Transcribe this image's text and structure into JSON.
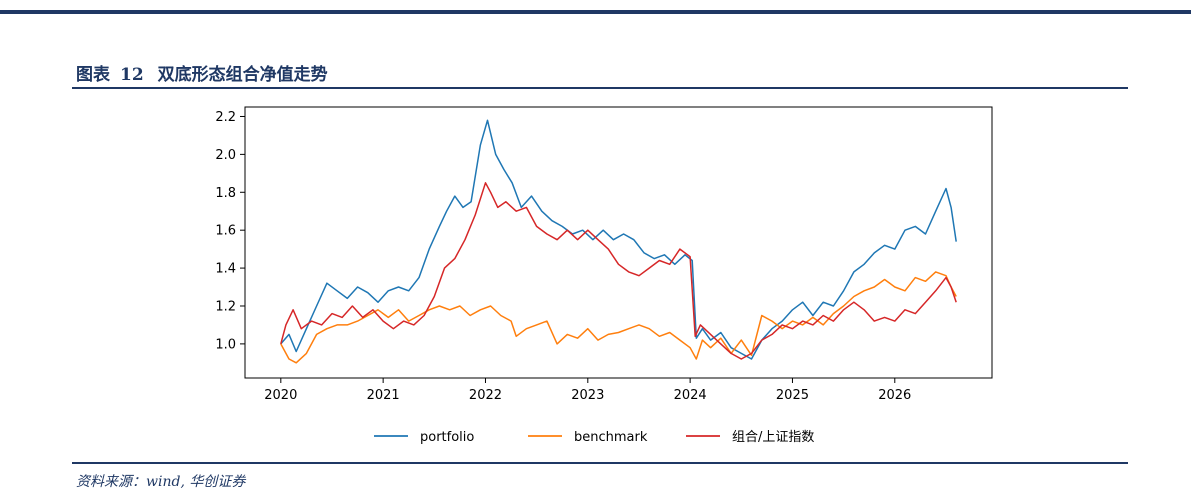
{
  "figure": {
    "label": "图表",
    "number": "12",
    "title": "双底形态组合净值走势"
  },
  "source": "资料来源：wind, 华创证券",
  "chart_data": {
    "type": "line",
    "title": "",
    "xlabel": "",
    "ylabel": "",
    "xlim": [
      2019.65,
      2026.95
    ],
    "ylim": [
      0.82,
      2.25
    ],
    "x_ticks": [
      "2020",
      "2021",
      "2022",
      "2023",
      "2024",
      "2025",
      "2026"
    ],
    "y_ticks": [
      "1.0",
      "1.2",
      "1.4",
      "1.6",
      "1.8",
      "2.0",
      "2.2"
    ],
    "grid": false,
    "legend": "bottom-center",
    "series": [
      {
        "name": "portfolio",
        "color": "#1f77b4",
        "x": [
          2020.0,
          2020.08,
          2020.15,
          2020.25,
          2020.35,
          2020.45,
          2020.55,
          2020.65,
          2020.75,
          2020.85,
          2020.95,
          2021.05,
          2021.15,
          2021.25,
          2021.35,
          2021.45,
          2021.55,
          2021.62,
          2021.7,
          2021.78,
          2021.86,
          2021.95,
          2022.02,
          2022.1,
          2022.18,
          2022.26,
          2022.35,
          2022.45,
          2022.55,
          2022.65,
          2022.75,
          2022.85,
          2022.95,
          2023.05,
          2023.15,
          2023.25,
          2023.35,
          2023.45,
          2023.55,
          2023.65,
          2023.75,
          2023.85,
          2023.95,
          2024.02,
          2024.06,
          2024.12,
          2024.2,
          2024.3,
          2024.4,
          2024.5,
          2024.6,
          2024.7,
          2024.8,
          2024.9,
          2025.0,
          2025.1,
          2025.2,
          2025.3,
          2025.4,
          2025.5,
          2025.6,
          2025.7,
          2025.8,
          2025.9,
          2026.0,
          2026.1,
          2026.2,
          2026.3,
          2026.4,
          2026.5,
          2026.55,
          2026.6
        ],
        "y": [
          1.0,
          1.05,
          0.96,
          1.08,
          1.2,
          1.32,
          1.28,
          1.24,
          1.3,
          1.27,
          1.22,
          1.28,
          1.3,
          1.28,
          1.35,
          1.5,
          1.62,
          1.7,
          1.78,
          1.72,
          1.75,
          2.05,
          2.18,
          2.0,
          1.92,
          1.85,
          1.72,
          1.78,
          1.7,
          1.65,
          1.62,
          1.58,
          1.6,
          1.55,
          1.6,
          1.55,
          1.58,
          1.55,
          1.48,
          1.45,
          1.47,
          1.42,
          1.47,
          1.44,
          1.03,
          1.08,
          1.02,
          1.06,
          0.98,
          0.95,
          0.92,
          1.02,
          1.08,
          1.12,
          1.18,
          1.22,
          1.15,
          1.22,
          1.2,
          1.28,
          1.38,
          1.42,
          1.48,
          1.52,
          1.5,
          1.6,
          1.62,
          1.58,
          1.7,
          1.82,
          1.72,
          1.54
        ]
      },
      {
        "name": "benchmark",
        "color": "#ff7f0e",
        "x": [
          2020.0,
          2020.08,
          2020.15,
          2020.25,
          2020.35,
          2020.45,
          2020.55,
          2020.65,
          2020.75,
          2020.85,
          2020.95,
          2021.05,
          2021.15,
          2021.25,
          2021.35,
          2021.45,
          2021.55,
          2021.65,
          2021.75,
          2021.85,
          2021.95,
          2022.05,
          2022.15,
          2022.25,
          2022.3,
          2022.4,
          2022.5,
          2022.6,
          2022.7,
          2022.8,
          2022.9,
          2023.0,
          2023.1,
          2023.2,
          2023.3,
          2023.4,
          2023.5,
          2023.6,
          2023.7,
          2023.8,
          2023.9,
          2024.0,
          2024.06,
          2024.12,
          2024.2,
          2024.3,
          2024.4,
          2024.5,
          2024.6,
          2024.7,
          2024.8,
          2024.9,
          2025.0,
          2025.1,
          2025.2,
          2025.3,
          2025.4,
          2025.5,
          2025.6,
          2025.7,
          2025.8,
          2025.9,
          2026.0,
          2026.1,
          2026.2,
          2026.3,
          2026.4,
          2026.5,
          2026.55,
          2026.6
        ],
        "y": [
          1.0,
          0.92,
          0.9,
          0.95,
          1.05,
          1.08,
          1.1,
          1.1,
          1.12,
          1.15,
          1.18,
          1.14,
          1.18,
          1.12,
          1.15,
          1.18,
          1.2,
          1.18,
          1.2,
          1.15,
          1.18,
          1.2,
          1.15,
          1.12,
          1.04,
          1.08,
          1.1,
          1.12,
          1.0,
          1.05,
          1.03,
          1.08,
          1.02,
          1.05,
          1.06,
          1.08,
          1.1,
          1.08,
          1.04,
          1.06,
          1.02,
          0.98,
          0.92,
          1.02,
          0.98,
          1.03,
          0.95,
          1.02,
          0.94,
          1.15,
          1.12,
          1.08,
          1.12,
          1.1,
          1.14,
          1.1,
          1.16,
          1.2,
          1.25,
          1.28,
          1.3,
          1.34,
          1.3,
          1.28,
          1.35,
          1.33,
          1.38,
          1.36,
          1.3,
          1.25
        ]
      },
      {
        "name": "组合/上证指数",
        "color": "#d62728",
        "x": [
          2020.0,
          2020.05,
          2020.12,
          2020.2,
          2020.3,
          2020.4,
          2020.5,
          2020.6,
          2020.7,
          2020.8,
          2020.9,
          2021.0,
          2021.1,
          2021.2,
          2021.3,
          2021.4,
          2021.5,
          2021.6,
          2021.7,
          2021.8,
          2021.9,
          2022.0,
          2022.05,
          2022.12,
          2022.2,
          2022.3,
          2022.4,
          2022.5,
          2022.6,
          2022.7,
          2022.8,
          2022.9,
          2023.0,
          2023.1,
          2023.2,
          2023.3,
          2023.4,
          2023.5,
          2023.6,
          2023.7,
          2023.8,
          2023.9,
          2024.0,
          2024.05,
          2024.1,
          2024.2,
          2024.3,
          2024.4,
          2024.5,
          2024.6,
          2024.7,
          2024.8,
          2024.9,
          2025.0,
          2025.1,
          2025.2,
          2025.3,
          2025.4,
          2025.5,
          2025.6,
          2025.7,
          2025.8,
          2025.9,
          2026.0,
          2026.1,
          2026.2,
          2026.3,
          2026.4,
          2026.5,
          2026.55,
          2026.6
        ],
        "y": [
          1.0,
          1.1,
          1.18,
          1.08,
          1.12,
          1.1,
          1.16,
          1.14,
          1.2,
          1.14,
          1.18,
          1.12,
          1.08,
          1.12,
          1.1,
          1.15,
          1.25,
          1.4,
          1.45,
          1.55,
          1.68,
          1.85,
          1.8,
          1.72,
          1.75,
          1.7,
          1.72,
          1.62,
          1.58,
          1.55,
          1.6,
          1.55,
          1.6,
          1.55,
          1.5,
          1.42,
          1.38,
          1.36,
          1.4,
          1.44,
          1.42,
          1.5,
          1.46,
          1.04,
          1.1,
          1.05,
          1.0,
          0.95,
          0.92,
          0.95,
          1.02,
          1.05,
          1.1,
          1.08,
          1.12,
          1.1,
          1.15,
          1.12,
          1.18,
          1.22,
          1.18,
          1.12,
          1.14,
          1.12,
          1.18,
          1.16,
          1.22,
          1.28,
          1.35,
          1.3,
          1.22
        ]
      }
    ]
  }
}
